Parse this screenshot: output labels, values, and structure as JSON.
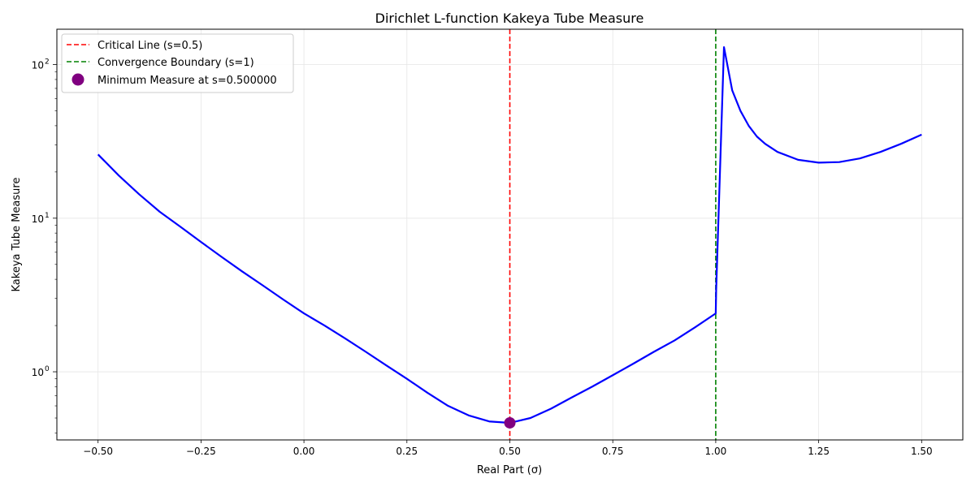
{
  "chart_data": {
    "type": "line",
    "title": "Dirichlet L-function Kakeya Tube Measure",
    "xlabel": "Real Part (σ)",
    "ylabel": "Kakeya Tube Measure",
    "yscale": "log",
    "xlim": [
      -0.6,
      1.6
    ],
    "ylim": [
      0.36,
      170
    ],
    "xticks": [
      -0.5,
      -0.25,
      0.0,
      0.25,
      0.5,
      0.75,
      1.0,
      1.25,
      1.5
    ],
    "xtick_labels": [
      "−0.50",
      "−0.25",
      "0.00",
      "0.25",
      "0.50",
      "0.75",
      "1.00",
      "1.25",
      "1.50"
    ],
    "yticks": [
      1,
      10,
      100
    ],
    "ytick_labels": [
      "10",
      "10",
      "10"
    ],
    "ytick_exponents": [
      "0",
      "1",
      "2"
    ],
    "grid": true,
    "legend_position": "top-left",
    "series": [
      {
        "name": "",
        "color": "#0000ff",
        "x": [
          -0.5,
          -0.45,
          -0.4,
          -0.35,
          -0.3,
          -0.25,
          -0.2,
          -0.15,
          -0.1,
          -0.05,
          0.0,
          0.05,
          0.1,
          0.15,
          0.2,
          0.25,
          0.3,
          0.35,
          0.4,
          0.45,
          0.5,
          0.55,
          0.6,
          0.65,
          0.7,
          0.75,
          0.8,
          0.85,
          0.9,
          0.95,
          1.0,
          1.001,
          1.02,
          1.04,
          1.06,
          1.08,
          1.1,
          1.12,
          1.15,
          1.2,
          1.25,
          1.3,
          1.35,
          1.4,
          1.45,
          1.5
        ],
        "values": [
          26,
          19,
          14.3,
          11,
          8.8,
          7.0,
          5.6,
          4.5,
          3.65,
          2.95,
          2.4,
          2.0,
          1.65,
          1.35,
          1.1,
          0.9,
          0.73,
          0.6,
          0.52,
          0.475,
          0.465,
          0.5,
          0.575,
          0.68,
          0.8,
          0.95,
          1.13,
          1.35,
          1.6,
          1.95,
          2.4,
          3.4,
          130,
          68,
          50,
          40,
          34,
          30.5,
          27,
          24,
          23,
          23.2,
          24.5,
          27,
          30.5,
          35
        ]
      }
    ],
    "reference_lines": [
      {
        "label": "Critical Line (s=0.5)",
        "x": 0.5,
        "color": "#ff0000"
      },
      {
        "label": "Convergence Boundary (s=1)",
        "x": 1.0,
        "color": "#008000"
      }
    ],
    "marker": {
      "label": "Minimum Measure at s=0.500000",
      "x": 0.5,
      "y": 0.465,
      "color": "#800080"
    }
  }
}
